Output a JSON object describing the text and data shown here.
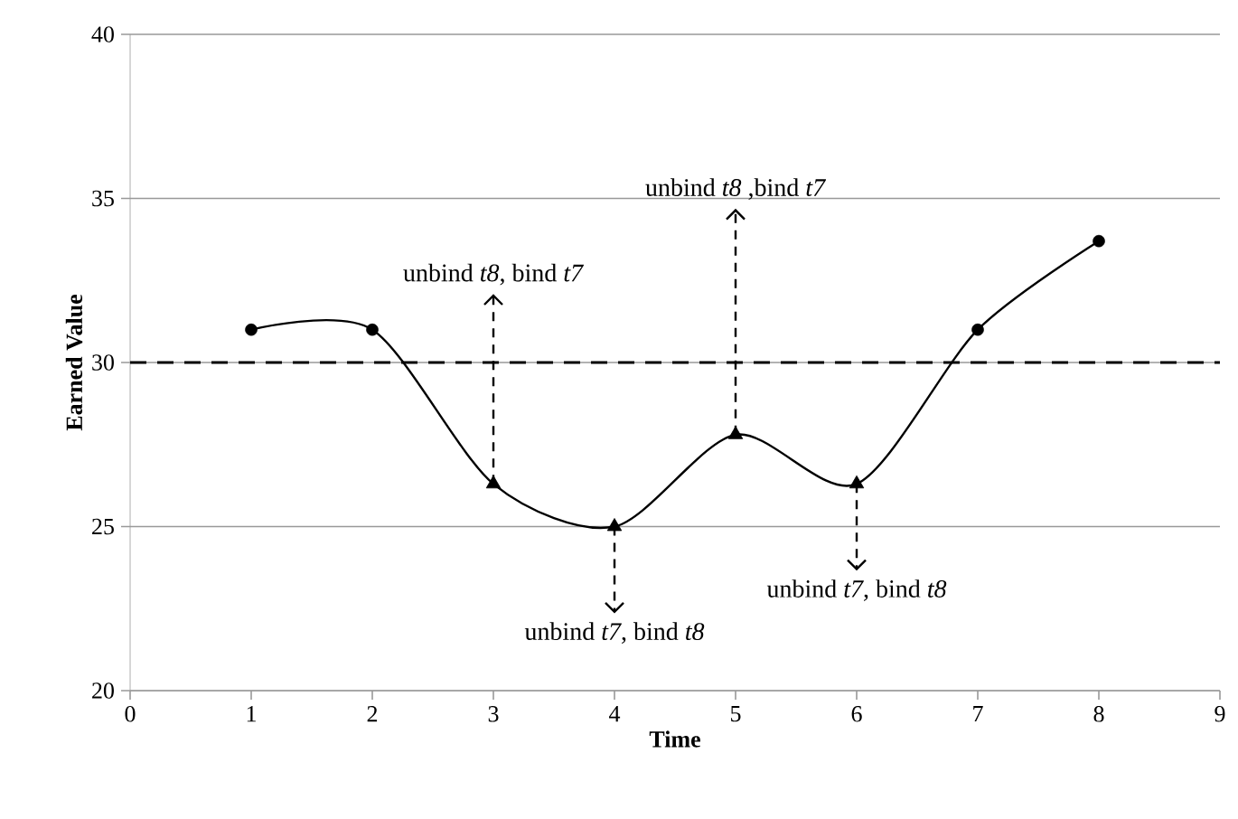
{
  "chart_data": {
    "type": "line",
    "xlabel": "Time",
    "ylabel": "Earned Value",
    "xlim": [
      0,
      9
    ],
    "xticks": [
      0,
      1,
      2,
      3,
      4,
      5,
      6,
      7,
      8,
      9
    ],
    "ylim": [
      20,
      40
    ],
    "yticks": [
      20,
      25,
      30,
      35,
      40
    ],
    "grid": "y",
    "series": [
      {
        "color": "#000000",
        "marker": "none",
        "x": [
          1,
          2,
          3,
          4,
          5,
          6,
          7,
          8
        ],
        "values": [
          31,
          31,
          26.3,
          25.0,
          27.8,
          26.3,
          31,
          33.7
        ]
      },
      {
        "type": "scatter",
        "color": "#000000",
        "marker": "circle",
        "x": [
          1,
          2,
          7,
          8
        ],
        "values": [
          31,
          31,
          31,
          33.7
        ]
      },
      {
        "type": "scatter",
        "color": "#000000",
        "marker": "triangle",
        "x": [
          3,
          4,
          5,
          6
        ],
        "values": [
          26.3,
          25.0,
          27.8,
          26.3
        ]
      }
    ],
    "ref_lines": [
      {
        "axis": "y",
        "value": 30,
        "color": "#000000",
        "line_style": "dashed"
      }
    ],
    "annotations": [
      {
        "text": "unbind *t8*, bind *t7*",
        "x": 3,
        "y": 26.3
      },
      {
        "text": "unbind *t7*, bind *t8*",
        "x": 4,
        "y": 25.0
      },
      {
        "text": "unbind *t8* ,bind *t7*",
        "x": 5,
        "y": 27.8
      },
      {
        "text": "unbind *t7*, bind *t8*",
        "x": 6,
        "y": 26.3
      }
    ]
  }
}
